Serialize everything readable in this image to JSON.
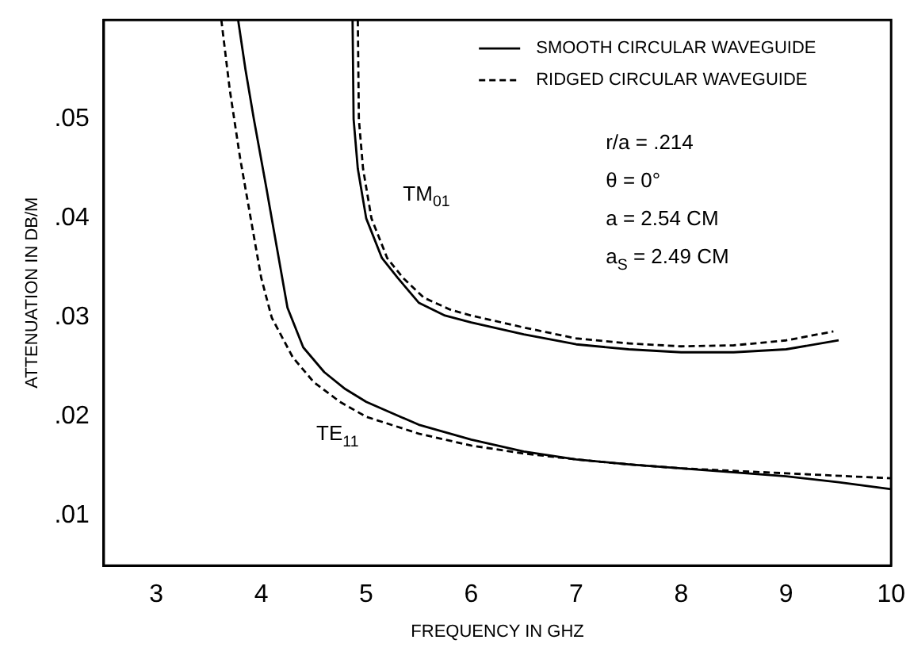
{
  "chart_data": {
    "type": "line",
    "xlabel": "FREQUENCY IN GHZ",
    "ylabel": "ATTENUATION IN DB/M",
    "xlim": [
      2.5,
      10
    ],
    "xticks": [
      3,
      4,
      5,
      6,
      7,
      8,
      9,
      10
    ],
    "ylim": [
      0.005,
      0.06
    ],
    "yticks": [
      {
        "value": 0.01,
        "label": ".01"
      },
      {
        "value": 0.02,
        "label": ".02"
      },
      {
        "value": 0.03,
        "label": ".03"
      },
      {
        "value": 0.04,
        "label": ".04"
      },
      {
        "value": 0.05,
        "label": ".05"
      }
    ],
    "grid": false,
    "legend": "top right",
    "marker": "none",
    "series": [
      {
        "name": "SMOOTH CIRCULAR WAVEGUIDE",
        "color": "#000000",
        "line_style": "solid",
        "x": [
          3.78,
          3.85,
          3.93,
          4.05,
          4.15,
          4.25,
          4.4,
          4.6,
          4.8,
          5.0,
          5.5,
          6,
          6.5,
          7,
          7.5,
          8,
          8.5,
          9,
          9.5,
          10
        ],
        "values": [
          0.06,
          0.055,
          0.05,
          0.043,
          0.037,
          0.031,
          0.027,
          0.0245,
          0.0228,
          0.0215,
          0.0192,
          0.0177,
          0.0165,
          0.0157,
          0.0152,
          0.0148,
          0.0144,
          0.014,
          0.0134,
          0.0127
        ]
      },
      {
        "name": "RIDGED CIRCULAR WAVEGUIDE",
        "color": "#000000",
        "line_style": "dashed",
        "x": [
          3.62,
          3.7,
          3.8,
          3.9,
          4.0,
          4.1,
          4.3,
          4.5,
          4.75,
          5.0,
          5.5,
          6,
          6.5,
          7,
          7.5,
          8,
          9,
          10
        ],
        "values": [
          0.06,
          0.053,
          0.046,
          0.04,
          0.034,
          0.03,
          0.026,
          0.0235,
          0.0215,
          0.02,
          0.0183,
          0.0171,
          0.0163,
          0.0157,
          0.0152,
          0.0148,
          0.0143,
          0.0138
        ]
      },
      {
        "color": "#000000",
        "line_style": "solid",
        "x": [
          4.87,
          4.88,
          4.92,
          5.0,
          5.15,
          5.3,
          5.5,
          5.75,
          6,
          6.5,
          7,
          7.5,
          8,
          8.5,
          9,
          9.5
        ],
        "values": [
          0.06,
          0.05,
          0.045,
          0.04,
          0.036,
          0.034,
          0.0315,
          0.0302,
          0.0295,
          0.0283,
          0.0273,
          0.0268,
          0.0265,
          0.0265,
          0.0268,
          0.0277
        ]
      },
      {
        "color": "#000000",
        "line_style": "dashed",
        "x": [
          4.92,
          4.93,
          4.97,
          5.05,
          5.2,
          5.35,
          5.55,
          5.8,
          6,
          6.5,
          7,
          7.5,
          8,
          8.5,
          9,
          9.45
        ],
        "values": [
          0.06,
          0.05,
          0.045,
          0.04,
          0.036,
          0.034,
          0.032,
          0.0308,
          0.0302,
          0.029,
          0.0279,
          0.0274,
          0.0271,
          0.0272,
          0.0277,
          0.0286
        ]
      }
    ],
    "annotations": [
      "r/a = .214",
      "θ = 0°",
      "a = 2.54 CM",
      "a$_{S}$ = 2.49 CM",
      "TM$_{01}$",
      "TE$_{11}$"
    ]
  }
}
